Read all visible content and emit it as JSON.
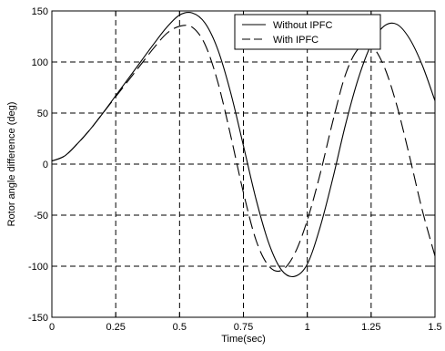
{
  "chart_data": {
    "type": "line",
    "title": "",
    "xlabel": "Time(sec)",
    "ylabel": "Rotor angle difference (deg)",
    "xlim": [
      0,
      1.5
    ],
    "ylim": [
      -150,
      150
    ],
    "grid": true,
    "legend_position": "top-right",
    "xticks": [
      0,
      0.25,
      0.5,
      0.75,
      1,
      1.25,
      1.5
    ],
    "xtick_labels": [
      "0",
      "0.25",
      "0.5",
      "0.75",
      "1",
      "1.25",
      "1.5"
    ],
    "yticks": [
      -150,
      -100,
      -50,
      0,
      50,
      100,
      150
    ],
    "ytick_labels": [
      "-150",
      "-100",
      "-50",
      "0",
      "50",
      "100",
      "150"
    ],
    "series": [
      {
        "name": "Without IPFC",
        "style": "solid",
        "color": "#000000",
        "x": [
          0,
          0.05,
          0.1,
          0.15,
          0.2,
          0.25,
          0.3,
          0.35,
          0.4,
          0.45,
          0.5,
          0.55,
          0.6,
          0.65,
          0.7,
          0.75,
          0.8,
          0.85,
          0.9,
          0.95,
          1.0,
          1.05,
          1.1,
          1.15,
          1.2,
          1.25,
          1.3,
          1.35,
          1.4,
          1.45,
          1.5
        ],
        "y": [
          3,
          8,
          20,
          34,
          50,
          67,
          84,
          101,
          118,
          134,
          146,
          148,
          138,
          112,
          70,
          18,
          -35,
          -78,
          -104,
          -110,
          -98,
          -62,
          -14,
          39,
          84,
          117,
          135,
          137,
          123,
          97,
          62
        ]
      },
      {
        "name": "With IPFC",
        "style": "dashed",
        "color": "#000000",
        "x": [
          0,
          0.05,
          0.1,
          0.15,
          0.2,
          0.25,
          0.3,
          0.35,
          0.4,
          0.45,
          0.5,
          0.55,
          0.6,
          0.65,
          0.7,
          0.75,
          0.8,
          0.85,
          0.9,
          0.95,
          1.0,
          1.05,
          1.1,
          1.15,
          1.2,
          1.25,
          1.3,
          1.35,
          1.4,
          1.45,
          1.5
        ],
        "y": [
          3,
          8,
          20,
          34,
          50,
          66,
          82,
          98,
          114,
          128,
          135,
          134,
          117,
          80,
          28,
          -28,
          -75,
          -100,
          -104,
          -88,
          -55,
          -10,
          42,
          88,
          113,
          116,
          96,
          58,
          8,
          -45,
          -90
        ]
      }
    ]
  }
}
